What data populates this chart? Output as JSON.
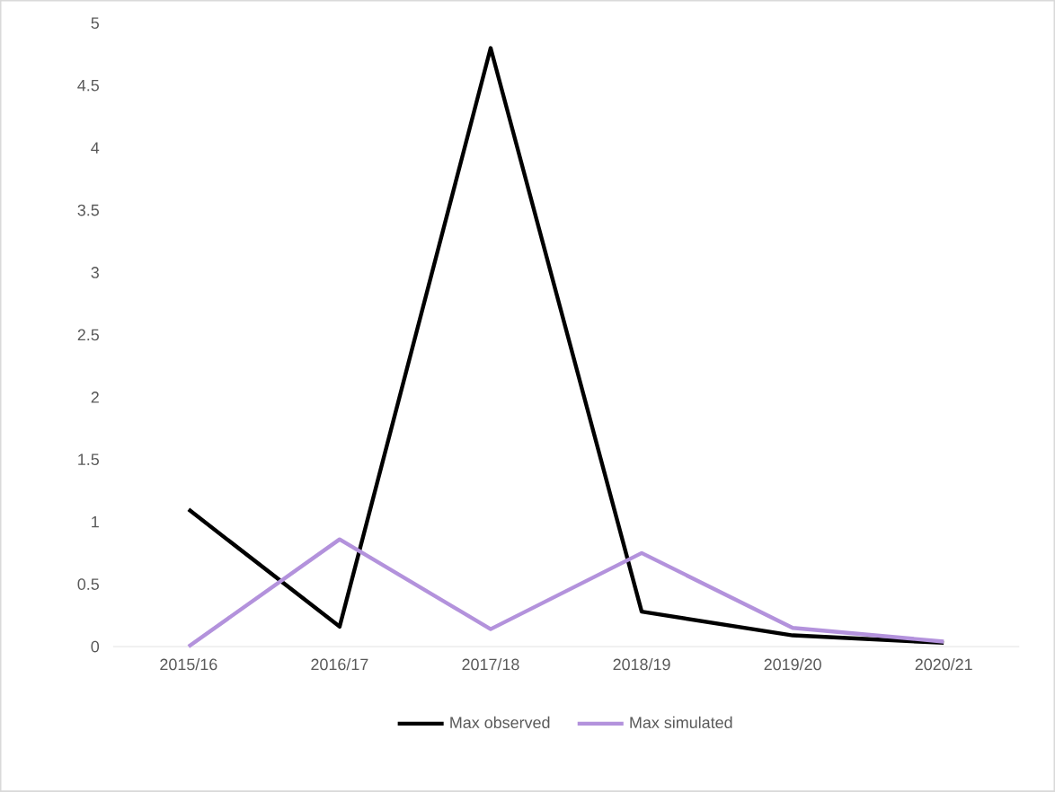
{
  "chart_data": {
    "type": "line",
    "categories": [
      "2015/16",
      "2016/17",
      "2017/18",
      "2018/19",
      "2019/20",
      "2020/21"
    ],
    "series": [
      {
        "name": "Max observed",
        "color": "#000000",
        "values": [
          1.1,
          0.16,
          4.8,
          0.28,
          0.09,
          0.03
        ]
      },
      {
        "name": "Max simulated",
        "color": "#b392dc",
        "values": [
          0,
          0.86,
          0.14,
          0.75,
          0.15,
          0.04
        ]
      }
    ],
    "ylim": [
      0,
      5
    ],
    "yticks": [
      0,
      0.5,
      1,
      1.5,
      2,
      2.5,
      3,
      3.5,
      4,
      4.5,
      5
    ],
    "legend": "bottom"
  }
}
